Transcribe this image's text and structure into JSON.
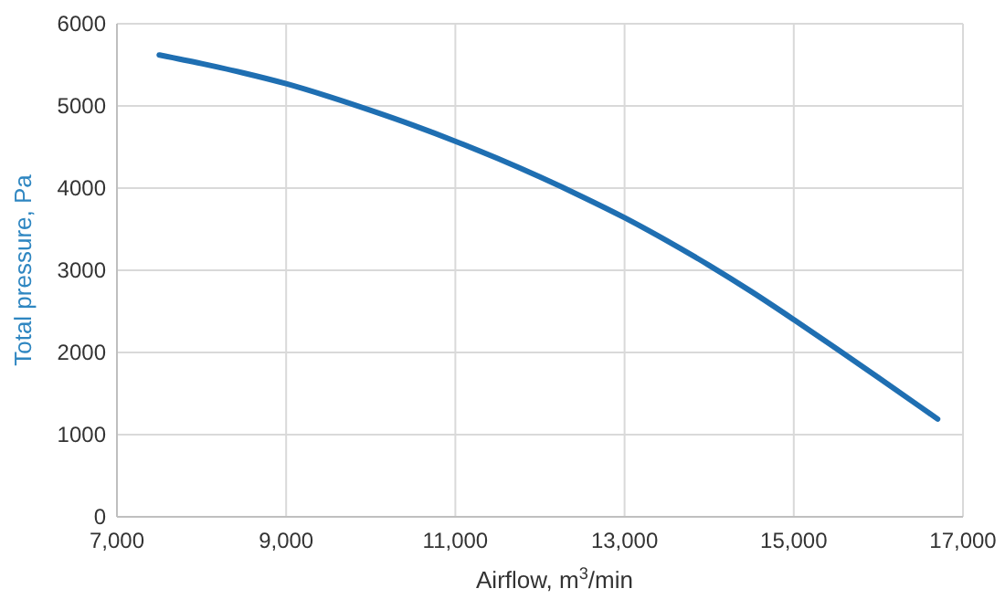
{
  "chart_data": {
    "type": "line",
    "xlabel": "Airflow, m$^{3}$/min",
    "ylabel": "Total pressure, Pa",
    "x": [
      7500,
      8000,
      8500,
      9000,
      9500,
      10000,
      10500,
      11000,
      11500,
      12000,
      12500,
      13000,
      13500,
      14000,
      14500,
      15000,
      15500,
      16000,
      16500,
      16700
    ],
    "series": [
      {
        "color": "#1f6fb2",
        "values": [
          5620,
          5515,
          5400,
          5270,
          5115,
          4945,
          4765,
          4570,
          4360,
          4135,
          3895,
          3640,
          3360,
          3060,
          2740,
          2400,
          2050,
          1695,
          1335,
          1190
        ]
      }
    ],
    "xlim": [
      7000,
      17000
    ],
    "xticks": [
      {
        "value": 7000,
        "label": "7,000"
      },
      {
        "value": 9000,
        "label": "9,000"
      },
      {
        "value": 11000,
        "label": "11,000"
      },
      {
        "value": 13000,
        "label": "13,000"
      },
      {
        "value": 15000,
        "label": "15,000"
      },
      {
        "value": 17000,
        "label": "17,000"
      }
    ],
    "ylim": [
      0,
      6000
    ],
    "yticks": [
      0,
      1000,
      2000,
      3000,
      4000,
      5000,
      6000
    ],
    "grid": true,
    "marker": "none",
    "line_style": "solid"
  }
}
